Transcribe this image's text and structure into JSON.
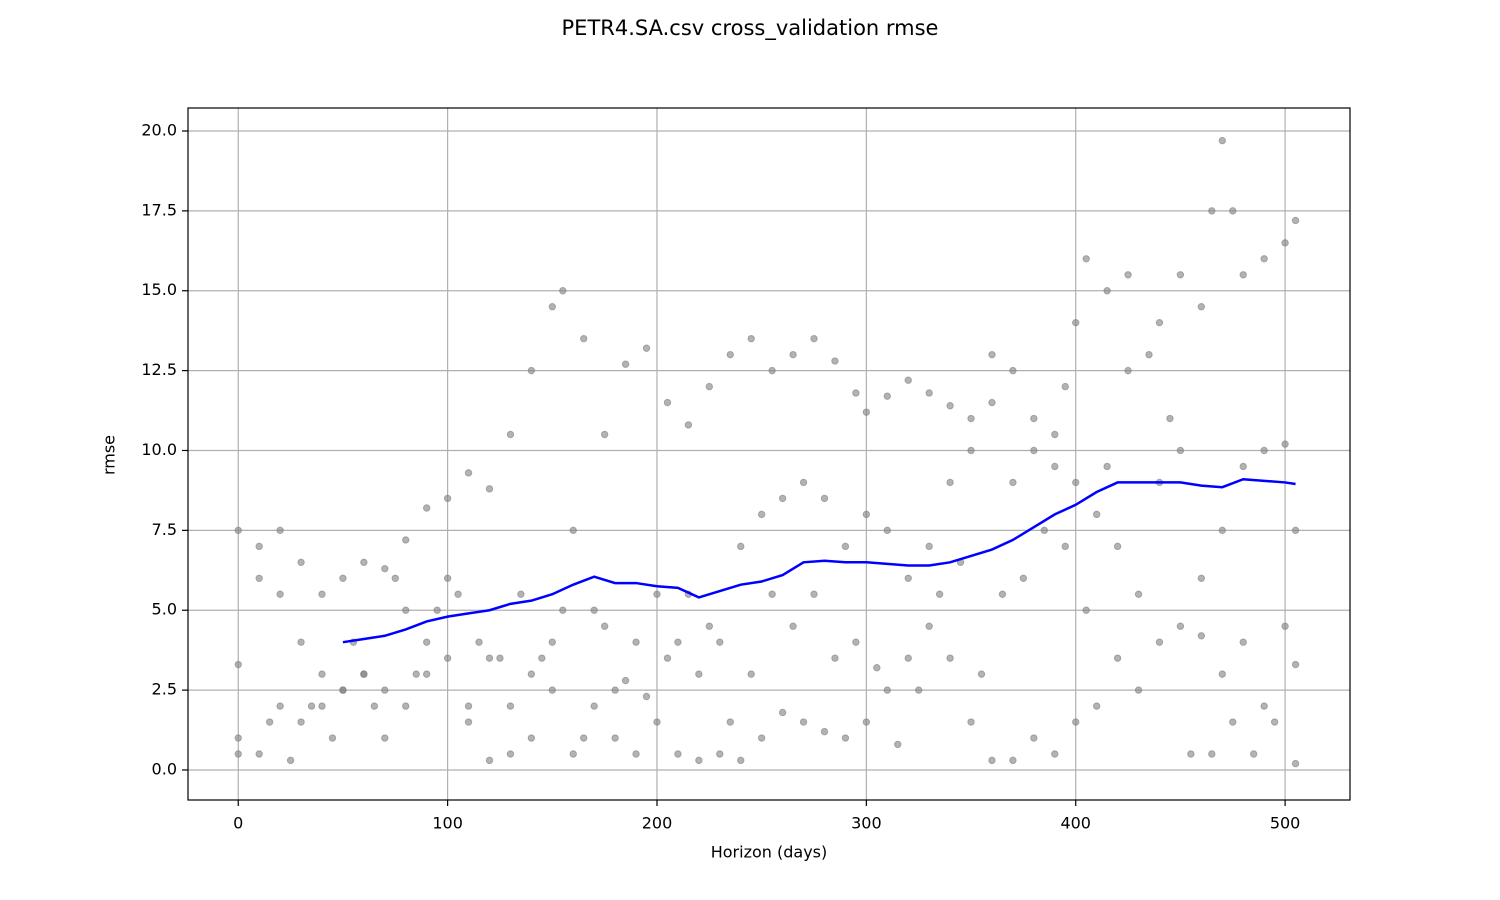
{
  "chart_data": {
    "type": "scatter",
    "title": "PETR4.SA.csv cross_validation rmse",
    "xlabel": "Horizon (days)",
    "ylabel": "rmse",
    "xlim": [
      -24,
      531
    ],
    "ylim": [
      -0.94,
      20.72
    ],
    "xticks": [
      0,
      100,
      200,
      300,
      400,
      500
    ],
    "yticks": [
      {
        "value": 0,
        "label": "0.0"
      },
      2.5,
      {
        "value": 5,
        "label": "5.0"
      },
      7.5,
      {
        "value": 10,
        "label": "10.0"
      },
      12.5,
      {
        "value": 15,
        "label": "15.0"
      },
      17.5,
      {
        "value": 20,
        "label": "20.0"
      }
    ],
    "grid": true,
    "series": [
      {
        "type": "scatter",
        "color": "#808080",
        "x": [
          0,
          10,
          20,
          30,
          40,
          50,
          60,
          70,
          80,
          90,
          100,
          110,
          120,
          130,
          140,
          150,
          155,
          165,
          175,
          185,
          195,
          205,
          215,
          225,
          235,
          245,
          255,
          265,
          275,
          285,
          295,
          300,
          310,
          320,
          330,
          340,
          350,
          360,
          370,
          380,
          390,
          395,
          400,
          405,
          415,
          425,
          440,
          450,
          460,
          465,
          470,
          475,
          480,
          490,
          500,
          505,
          0,
          10,
          20,
          30,
          40,
          50,
          60,
          70,
          80,
          90,
          100,
          110,
          120,
          130,
          140,
          150,
          160,
          170,
          180,
          190,
          200,
          210,
          220,
          230,
          240,
          250,
          260,
          270,
          280,
          290,
          300,
          310,
          320,
          330,
          340,
          350,
          360,
          370,
          380,
          390,
          400,
          410,
          420,
          430,
          440,
          450,
          460,
          470,
          480,
          490,
          500,
          505,
          0,
          10,
          20,
          30,
          40,
          50,
          60,
          70,
          80,
          90,
          100,
          110,
          120,
          130,
          140,
          150,
          160,
          170,
          180,
          190,
          200,
          210,
          220,
          230,
          240,
          250,
          260,
          270,
          280,
          290,
          300,
          310,
          320,
          330,
          340,
          350,
          360,
          370,
          380,
          390,
          400,
          410,
          420,
          430,
          440,
          450,
          460,
          470,
          480,
          490,
          500,
          505,
          0,
          15,
          25,
          35,
          45,
          55,
          65,
          75,
          85,
          95,
          105,
          115,
          125,
          135,
          145,
          155,
          165,
          175,
          185,
          195,
          205,
          215,
          225,
          235,
          245,
          255,
          265,
          275,
          285,
          295,
          305,
          315,
          325,
          335,
          345,
          355,
          365,
          375,
          385,
          395,
          405,
          415,
          425,
          435,
          445,
          455,
          465,
          475,
          485,
          495,
          505
        ],
        "values": [
          7.5,
          7,
          7.5,
          6.5,
          5.5,
          6,
          6.5,
          6.3,
          7.2,
          8.2,
          8.5,
          9.3,
          8.8,
          10.5,
          12.5,
          14.5,
          15,
          13.5,
          10.5,
          12.7,
          13.2,
          11.5,
          10.8,
          12,
          13,
          13.5,
          12.5,
          13,
          13.5,
          12.8,
          11.8,
          11.2,
          11.7,
          12.2,
          11.8,
          11.4,
          11,
          13,
          12.5,
          11,
          10.5,
          12,
          14,
          16,
          15,
          15.5,
          14,
          15.5,
          14.5,
          17.5,
          19.7,
          17.5,
          15.5,
          16,
          16.5,
          17.2,
          3.3,
          6,
          5.5,
          4,
          2,
          2.5,
          3,
          2.5,
          5,
          3,
          6,
          2,
          3.5,
          2,
          3,
          4,
          7.5,
          5,
          2.5,
          4,
          5.5,
          4,
          3,
          4,
          7,
          8,
          8.5,
          9,
          8.5,
          7,
          8,
          7.5,
          6,
          7,
          9,
          10,
          11.5,
          9,
          10,
          9.5,
          9,
          8,
          7,
          5.5,
          9,
          10,
          6,
          7.5,
          9.5,
          10,
          10.2,
          7.5,
          1,
          0.5,
          2,
          1.5,
          3,
          2.5,
          3,
          1,
          2,
          4,
          3.5,
          1.5,
          0.3,
          0.5,
          1,
          2.5,
          0.5,
          2,
          1,
          0.5,
          1.5,
          0.5,
          0.3,
          0.5,
          0.3,
          1,
          1.8,
          1.5,
          1.2,
          1,
          1.5,
          2.5,
          3.5,
          4.5,
          3.5,
          1.5,
          0.3,
          0.3,
          1,
          0.5,
          1.5,
          2,
          3.5,
          2.5,
          4,
          4.5,
          4.2,
          3,
          4,
          2,
          4.5,
          3.3,
          0.5,
          1.5,
          0.3,
          2,
          1,
          4,
          2,
          6,
          3,
          5,
          5.5,
          4,
          3.5,
          5.5,
          3.5,
          5,
          1,
          4.5,
          2.8,
          2.3,
          3.5,
          5.5,
          4.5,
          1.5,
          3,
          5.5,
          4.5,
          5.5,
          3.5,
          4,
          3.2,
          0.8,
          2.5,
          5.5,
          6.5,
          3,
          5.5,
          6,
          7.5,
          7,
          5,
          9.5,
          12.5,
          13,
          11,
          0.5,
          0.5,
          1.5,
          0.5,
          1.5,
          0.2
        ]
      },
      {
        "type": "line",
        "color": "#0000ff",
        "x": [
          50,
          60,
          70,
          80,
          90,
          100,
          110,
          120,
          130,
          140,
          150,
          160,
          170,
          180,
          190,
          200,
          210,
          220,
          230,
          240,
          250,
          260,
          270,
          280,
          290,
          300,
          310,
          320,
          330,
          340,
          350,
          360,
          370,
          380,
          390,
          400,
          410,
          420,
          430,
          440,
          450,
          460,
          470,
          480,
          490,
          500,
          505
        ],
        "values": [
          4.0,
          4.1,
          4.2,
          4.4,
          4.65,
          4.8,
          4.9,
          5.0,
          5.2,
          5.3,
          5.5,
          5.8,
          6.05,
          5.85,
          5.85,
          5.75,
          5.7,
          5.4,
          5.6,
          5.8,
          5.9,
          6.1,
          6.5,
          6.55,
          6.5,
          6.5,
          6.45,
          6.4,
          6.4,
          6.5,
          6.7,
          6.9,
          7.2,
          7.6,
          8.0,
          8.3,
          8.7,
          9.0,
          9.0,
          9.0,
          9.0,
          8.9,
          8.85,
          9.1,
          9.05,
          9.0,
          8.95
        ]
      }
    ]
  }
}
